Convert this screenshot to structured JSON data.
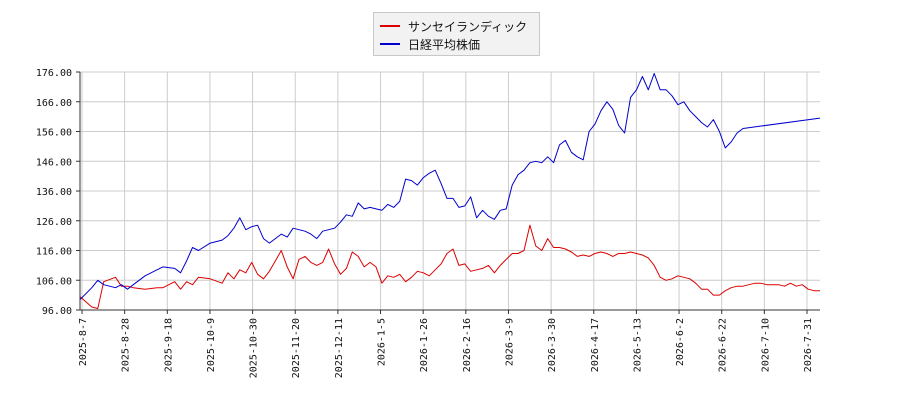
{
  "chart_data": {
    "type": "line",
    "title": "",
    "xlabel": "",
    "ylabel": "",
    "ylim": [
      96,
      176
    ],
    "yticks": [
      "96.00",
      "106.00",
      "116.00",
      "126.00",
      "136.00",
      "146.00",
      "156.00",
      "166.00",
      "176.00"
    ],
    "xticks": [
      "2025-8-7",
      "2025-8-28",
      "2025-9-18",
      "2025-10-9",
      "2025-10-30",
      "2025-11-20",
      "2025-12-11",
      "2026-1-5",
      "2026-1-26",
      "2026-2-16",
      "2026-3-9",
      "2026-3-30",
      "2026-4-17",
      "2026-5-13",
      "2026-6-2",
      "2026-6-22",
      "2026-7-10",
      "2026-7-31"
    ],
    "grid": true,
    "legend_position": "top-center",
    "series": [
      {
        "name": "サンセイランディック",
        "color": "#dd0000",
        "values": [
          100.5,
          97,
          96.5,
          105.5,
          107,
          104,
          104,
          103.5,
          103,
          103.5,
          103.5,
          105.5,
          103,
          105.5,
          104.5,
          107,
          106.5,
          105,
          108.5,
          106.5,
          109.5,
          108.5,
          112,
          108,
          106.5,
          109,
          116,
          110.5,
          106.5,
          113,
          114,
          112,
          111,
          112,
          116.5,
          111.5,
          108,
          110,
          115.5,
          114,
          110.5,
          112,
          110.5,
          105,
          107.5,
          107,
          108,
          105.5,
          107,
          109,
          108.5,
          107.5,
          109.5,
          111.5,
          115,
          116.5,
          111,
          111.5,
          109,
          109.5,
          110,
          111,
          108.5,
          111,
          113,
          115,
          115,
          116,
          124.5,
          117.5,
          116,
          120,
          117,
          117,
          116.5,
          115.5,
          114,
          114.5,
          114,
          115,
          115.5,
          115,
          114,
          115,
          115,
          115.5,
          115,
          114.5,
          113.5,
          111,
          107,
          106,
          106.5,
          107.5,
          107,
          106.5,
          105,
          103,
          103,
          101,
          101,
          102.5,
          103.5,
          104,
          104,
          104.5,
          105,
          105,
          104.5,
          104.5,
          104.5,
          104,
          105,
          104,
          104.5,
          103,
          102.5,
          102.5
        ],
        "x_index": [
          0,
          2,
          3,
          4,
          6,
          7,
          8,
          9,
          11,
          13,
          14,
          16,
          17,
          18,
          19,
          20,
          22,
          24,
          25,
          26,
          27,
          28,
          29,
          30,
          31,
          32,
          34,
          35,
          36,
          37,
          38,
          39,
          40,
          41,
          42,
          43,
          44,
          45,
          46,
          47,
          48,
          49,
          50,
          51,
          52,
          53,
          54,
          55,
          56,
          57,
          58,
          59,
          60,
          61,
          62,
          63,
          64,
          65,
          66,
          67,
          68,
          69,
          70,
          71,
          72,
          73,
          74,
          75,
          76,
          77,
          78,
          79,
          80,
          81,
          82,
          83,
          84,
          85,
          86,
          87,
          88,
          89,
          90,
          91,
          92,
          93,
          94,
          95,
          96,
          97,
          98,
          99,
          100,
          101,
          102,
          103,
          104,
          105,
          106,
          107,
          108,
          109,
          110,
          111,
          112,
          113,
          114,
          115,
          116,
          117,
          118,
          119,
          120,
          121,
          122,
          123,
          124,
          125
        ]
      },
      {
        "name": "日経平均株価",
        "color": "#0000cc",
        "values": [
          99.5,
          103.5,
          106,
          104.5,
          103.5,
          104.5,
          103,
          104.5,
          107.5,
          109.5,
          110.5,
          110,
          108.5,
          112.5,
          117,
          116,
          118.5,
          119.5,
          121,
          123.5,
          127,
          123,
          124,
          124.5,
          120,
          118.5,
          121.5,
          120.5,
          123.5,
          123,
          122.5,
          121.5,
          120,
          122.5,
          123,
          123.5,
          125.5,
          128,
          127.5,
          132,
          130,
          130.5,
          130,
          129.5,
          131.5,
          130.5,
          132.5,
          140,
          139.5,
          138,
          140.5,
          142,
          143,
          138.5,
          133.5,
          133.5,
          130.5,
          131,
          134,
          127,
          129.5,
          127.5,
          126.5,
          129.5,
          130,
          138,
          141.5,
          143,
          145.5,
          146,
          145.5,
          147.5,
          145.5,
          151.5,
          153,
          149,
          147.5,
          146.5,
          156,
          158.5,
          163,
          166,
          163.5,
          158,
          155.5,
          167.5,
          170,
          174.5,
          170,
          175.5,
          170,
          170,
          168,
          165,
          166,
          163,
          161,
          159,
          157.5,
          160,
          156,
          150.5,
          152.5,
          155.5,
          157,
          160.5
        ],
        "x_index": [
          0,
          2,
          3,
          4,
          6,
          7,
          8,
          9,
          11,
          13,
          14,
          16,
          17,
          18,
          19,
          20,
          22,
          24,
          25,
          26,
          27,
          28,
          29,
          30,
          31,
          32,
          34,
          35,
          36,
          37,
          38,
          39,
          40,
          41,
          42,
          43,
          44,
          45,
          46,
          47,
          48,
          49,
          50,
          51,
          52,
          53,
          54,
          55,
          56,
          57,
          58,
          59,
          60,
          61,
          62,
          63,
          64,
          65,
          66,
          67,
          68,
          69,
          70,
          71,
          72,
          73,
          74,
          75,
          76,
          77,
          78,
          79,
          80,
          81,
          82,
          83,
          84,
          85,
          86,
          87,
          88,
          89,
          90,
          91,
          92,
          93,
          94,
          95,
          96,
          97,
          98,
          99,
          100,
          101,
          102,
          103,
          104,
          105,
          106,
          107,
          108,
          109,
          110,
          111,
          112,
          125
        ]
      }
    ]
  }
}
